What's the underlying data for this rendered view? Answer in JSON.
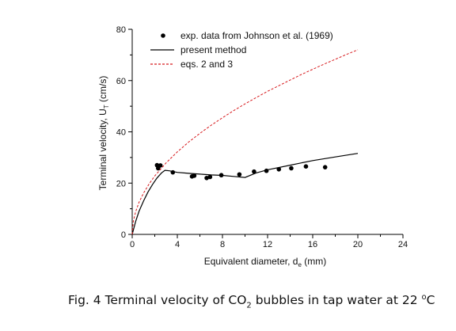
{
  "chart_data": {
    "type": "scatter",
    "xlabel": "Equivalent diameter, d",
    "xlabel_sub": "e",
    "xlabel_unit": " (mm)",
    "ylabel": "Terminal velocity, U",
    "ylabel_sub": "T",
    "ylabel_unit": " (cm/s)",
    "xlim": [
      0,
      24
    ],
    "ylim": [
      0,
      80
    ],
    "xticks": [
      "0",
      "4",
      "8",
      "12",
      "16",
      "20",
      "24"
    ],
    "yticks": [
      "0",
      "20",
      "40",
      "60",
      "80"
    ],
    "grid": false,
    "legend_position": "top-left",
    "series": [
      {
        "name": "exp. data from Johnson et al. (1969)",
        "style": "markers",
        "color": "#000000",
        "x": [
          2.2,
          2.3,
          2.5,
          3.6,
          5.3,
          5.5,
          6.6,
          6.9,
          7.9,
          9.5,
          10.8,
          11.9,
          13.0,
          14.1,
          15.4,
          17.1
        ],
        "y": [
          27.0,
          25.8,
          26.9,
          24.2,
          22.6,
          22.9,
          22.0,
          22.4,
          23.1,
          23.4,
          24.5,
          24.8,
          25.4,
          25.8,
          26.5,
          26.2
        ]
      },
      {
        "name": "present method",
        "style": "solid",
        "color": "#000000",
        "x": [
          0,
          0.3,
          0.6,
          1.0,
          1.4,
          1.8,
          2.2,
          2.6,
          2.9,
          3.3,
          4,
          5,
          6,
          7,
          8,
          9,
          10,
          11,
          12,
          14,
          16,
          18,
          20
        ],
        "y": [
          0,
          5.0,
          9.0,
          13.0,
          16.5,
          19.5,
          22.0,
          24.0,
          25.0,
          24.8,
          24.2,
          23.8,
          23.5,
          23.2,
          23.0,
          22.6,
          22.2,
          24.0,
          25.2,
          27.0,
          28.8,
          30.2,
          31.6
        ]
      },
      {
        "name": "eqs. 2 and 3",
        "style": "dashed",
        "color": "#d7191c",
        "x": [
          0,
          0.1,
          0.3,
          0.6,
          1,
          1.5,
          2,
          3,
          4,
          5,
          6,
          7,
          8,
          9,
          10,
          11,
          12,
          13,
          14,
          15,
          16,
          17,
          18,
          19,
          20
        ],
        "y": [
          0,
          5.1,
          8.8,
          12.5,
          16.1,
          19.7,
          22.8,
          27.9,
          32.2,
          36.0,
          39.4,
          42.6,
          45.5,
          48.3,
          50.9,
          53.4,
          55.8,
          58.0,
          60.2,
          62.4,
          64.4,
          66.4,
          68.3,
          70.2,
          72.0
        ]
      }
    ]
  },
  "caption": {
    "prefix": "Fig. 4 Terminal velocity of  CO",
    "sub": "2",
    "middle": " bubbles in tap water at 22 ",
    "sup": "o",
    "suffix": "C"
  }
}
